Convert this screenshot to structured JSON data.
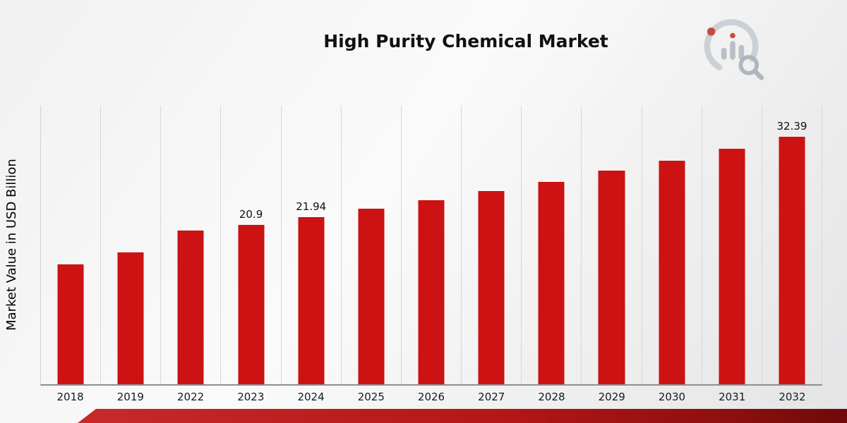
{
  "chart_data": {
    "type": "bar",
    "title": "High Purity Chemical Market",
    "ylabel": "Market Value in USD Billion",
    "categories": [
      "2018",
      "2019",
      "2022",
      "2023",
      "2024",
      "2025",
      "2026",
      "2027",
      "2028",
      "2029",
      "2030",
      "2031",
      "2032"
    ],
    "values": [
      15.7,
      17.3,
      20.1,
      20.9,
      21.94,
      23.0,
      24.1,
      25.3,
      26.5,
      28.0,
      29.3,
      30.9,
      32.39
    ],
    "data_labels": {
      "2023": "20.9",
      "2024": "21.94",
      "2032": "32.39"
    },
    "bar_color": "#cc1212",
    "ylim": [
      0,
      36.5
    ],
    "grid": "vertical",
    "legend": "none"
  }
}
